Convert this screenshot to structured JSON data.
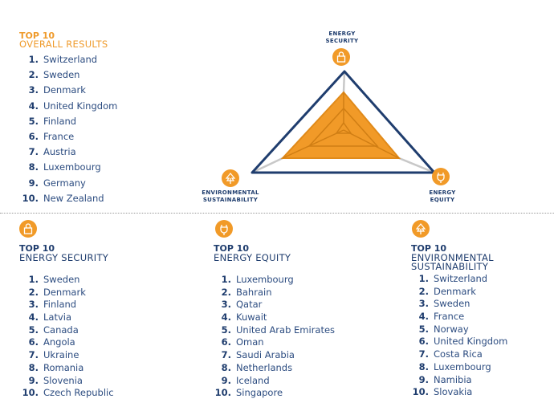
{
  "colors": {
    "accent": "#f19a28",
    "navy": "#1f3d6e",
    "text": "#2c4c80"
  },
  "overall": {
    "title": "TOP 10",
    "subtitle": "OVERALL RESULTS",
    "items": [
      {
        "n": "1.",
        "name": "Switzerland"
      },
      {
        "n": "2.",
        "name": "Sweden"
      },
      {
        "n": "3.",
        "name": "Denmark"
      },
      {
        "n": "4.",
        "name": "United Kingdom"
      },
      {
        "n": "5.",
        "name": "Finland"
      },
      {
        "n": "6.",
        "name": "France"
      },
      {
        "n": "7.",
        "name": "Austria"
      },
      {
        "n": "8.",
        "name": "Luxembourg"
      },
      {
        "n": "9.",
        "name": "Germany"
      },
      {
        "n": "10.",
        "name": "New Zealand"
      }
    ]
  },
  "diagram": {
    "security_label": [
      "ENERGY",
      "SECURITY"
    ],
    "environment_label": [
      "ENVIRONMENTAL",
      "SUSTAINABILITY"
    ],
    "equity_label": [
      "ENERGY",
      "EQUITY"
    ],
    "icons": {
      "security": "lock-icon",
      "equity": "plug-icon",
      "environment": "tree-icon"
    }
  },
  "security": {
    "title": "TOP 10",
    "subtitle": "ENERGY SECURITY",
    "icon": "lock-icon",
    "items": [
      {
        "n": "1.",
        "name": "Sweden"
      },
      {
        "n": "2.",
        "name": "Denmark"
      },
      {
        "n": "3.",
        "name": "Finland"
      },
      {
        "n": "4.",
        "name": "Latvia"
      },
      {
        "n": "5.",
        "name": "Canada"
      },
      {
        "n": "6.",
        "name": "Angola"
      },
      {
        "n": "7.",
        "name": "Ukraine"
      },
      {
        "n": "8.",
        "name": "Romania"
      },
      {
        "n": "9.",
        "name": "Slovenia"
      },
      {
        "n": "10.",
        "name": "Czech Republic"
      }
    ]
  },
  "equity": {
    "title": "TOP 10",
    "subtitle": "ENERGY EQUITY",
    "icon": "plug-icon",
    "items": [
      {
        "n": "1.",
        "name": "Luxembourg"
      },
      {
        "n": "2.",
        "name": "Bahrain"
      },
      {
        "n": "3.",
        "name": "Qatar"
      },
      {
        "n": "4.",
        "name": "Kuwait"
      },
      {
        "n": "5.",
        "name": "United Arab Emirates"
      },
      {
        "n": "6.",
        "name": "Oman"
      },
      {
        "n": "7.",
        "name": "Saudi Arabia"
      },
      {
        "n": "8.",
        "name": "Netherlands"
      },
      {
        "n": "9.",
        "name": "Iceland"
      },
      {
        "n": "10.",
        "name": "Singapore"
      }
    ]
  },
  "environment": {
    "title": "TOP 10",
    "subtitle": [
      "ENVIRONMENTAL",
      "SUSTAINABILITY"
    ],
    "icon": "tree-icon",
    "items": [
      {
        "n": "1.",
        "name": "Switzerland"
      },
      {
        "n": "2.",
        "name": "Denmark"
      },
      {
        "n": "3.",
        "name": "Sweden"
      },
      {
        "n": "4.",
        "name": "France"
      },
      {
        "n": "5.",
        "name": "Norway"
      },
      {
        "n": "6.",
        "name": "United Kingdom"
      },
      {
        "n": "7.",
        "name": "Costa Rica"
      },
      {
        "n": "8.",
        "name": "Luxembourg"
      },
      {
        "n": "9.",
        "name": "Namibia"
      },
      {
        "n": "10.",
        "name": "Slovakia"
      }
    ]
  }
}
